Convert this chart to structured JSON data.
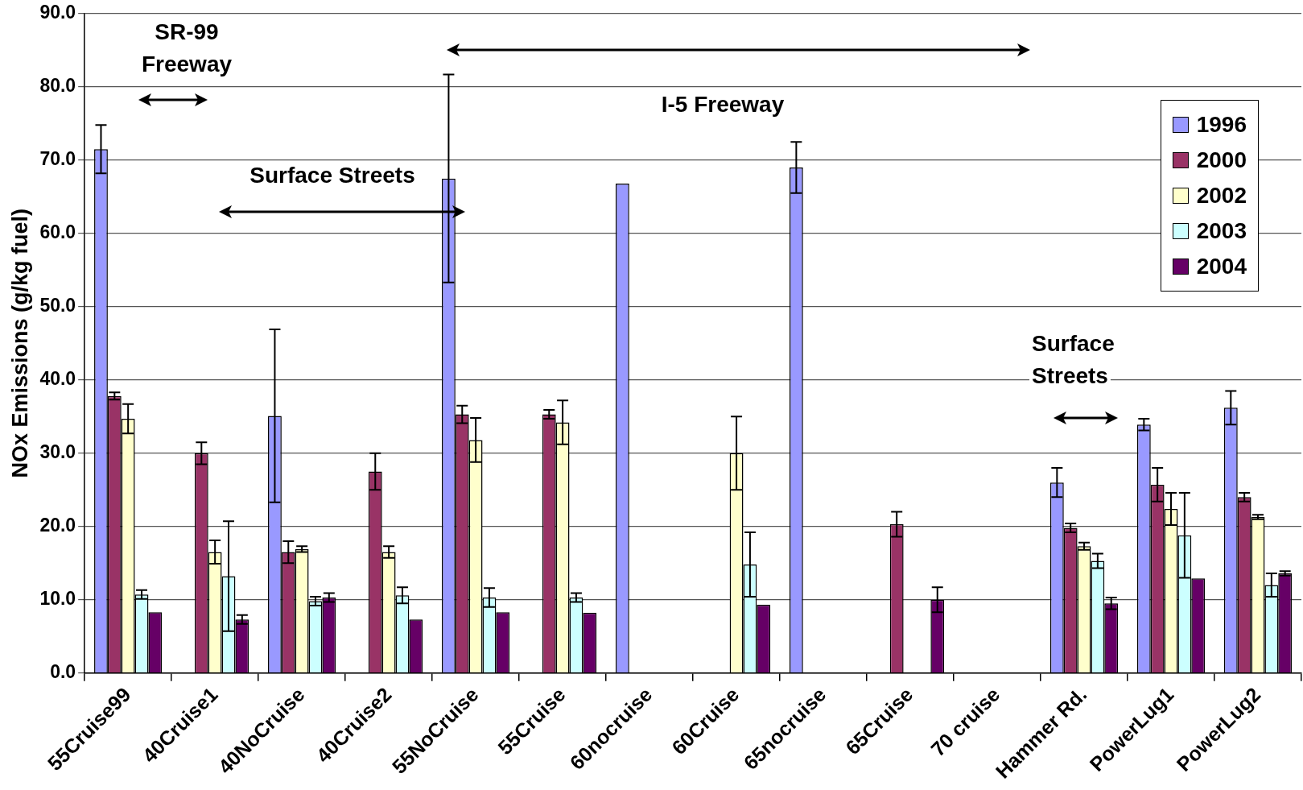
{
  "chart_data": {
    "type": "bar",
    "ylabel": "NOx Emissions (g/kg fuel)",
    "categories": [
      "55Cruise99",
      "40Cruise1",
      "40NoCruise",
      "40Cruise2",
      "55NoCruise",
      "55Cruise",
      "60nocruise",
      "60Cruise",
      "65nocruise",
      "65Cruise",
      "70 cruise",
      "Hammer Rd.",
      "PowerLug1",
      "PowerLug2"
    ],
    "series": [
      {
        "name": "1996",
        "color": "#9999ff",
        "values": [
          71.5,
          null,
          35.1,
          null,
          67.5,
          null,
          66.8,
          null,
          69.0,
          null,
          null,
          26.0,
          33.9,
          36.2
        ],
        "errors": [
          3.3,
          null,
          11.8,
          null,
          14.2,
          null,
          null,
          null,
          3.5,
          null,
          null,
          2.0,
          0.8,
          2.3
        ]
      },
      {
        "name": "2000",
        "color": "#993366",
        "values": [
          37.8,
          30.0,
          16.5,
          27.5,
          35.3,
          35.3,
          null,
          null,
          null,
          20.3,
          null,
          19.8,
          25.7,
          24.0
        ],
        "errors": [
          0.5,
          1.5,
          1.5,
          2.5,
          1.2,
          0.6,
          null,
          null,
          null,
          1.7,
          null,
          0.6,
          2.3,
          0.6
        ]
      },
      {
        "name": "2002",
        "color": "#ffffcc",
        "values": [
          34.7,
          16.5,
          16.9,
          16.5,
          31.8,
          34.2,
          null,
          30.0,
          null,
          null,
          null,
          17.3,
          22.4,
          21.3
        ],
        "errors": [
          2.0,
          1.6,
          0.4,
          0.8,
          3.0,
          3.0,
          null,
          5.0,
          null,
          null,
          null,
          0.5,
          2.2,
          0.3
        ]
      },
      {
        "name": "2003",
        "color": "#ccffff",
        "values": [
          10.7,
          13.2,
          9.8,
          10.6,
          10.3,
          10.3,
          null,
          14.8,
          null,
          null,
          null,
          15.3,
          18.8,
          12.0
        ],
        "errors": [
          0.6,
          7.5,
          0.6,
          1.1,
          1.3,
          0.6,
          null,
          4.4,
          null,
          null,
          null,
          1.0,
          5.8,
          1.6
        ]
      },
      {
        "name": "2004",
        "color": "#660066",
        "values": [
          8.3,
          7.3,
          10.3,
          7.3,
          8.3,
          8.2,
          null,
          9.3,
          null,
          10.0,
          null,
          9.5,
          12.9,
          13.6
        ],
        "errors": [
          null,
          0.6,
          0.6,
          null,
          null,
          null,
          null,
          null,
          null,
          1.7,
          null,
          0.8,
          null,
          0.3
        ]
      }
    ],
    "ylim": [
      0,
      90
    ],
    "yticks": [
      {
        "value": 0,
        "label": "0.0"
      },
      {
        "value": 10,
        "label": "10.0"
      },
      {
        "value": 20,
        "label": "20.0"
      },
      {
        "value": 30,
        "label": "30.0"
      },
      {
        "value": 40,
        "label": "40.0"
      },
      {
        "value": 50,
        "label": "50.0"
      },
      {
        "value": 60,
        "label": "60.0"
      },
      {
        "value": 70,
        "label": "70.0"
      },
      {
        "value": 80,
        "label": "80.0"
      },
      {
        "value": 90,
        "label": "90.0"
      }
    ],
    "grid": "y",
    "legend": "top right",
    "annotations": [
      "SR-99 Freeway",
      "Surface Streets",
      "I-5 Freeway",
      "Surface Streets"
    ]
  }
}
